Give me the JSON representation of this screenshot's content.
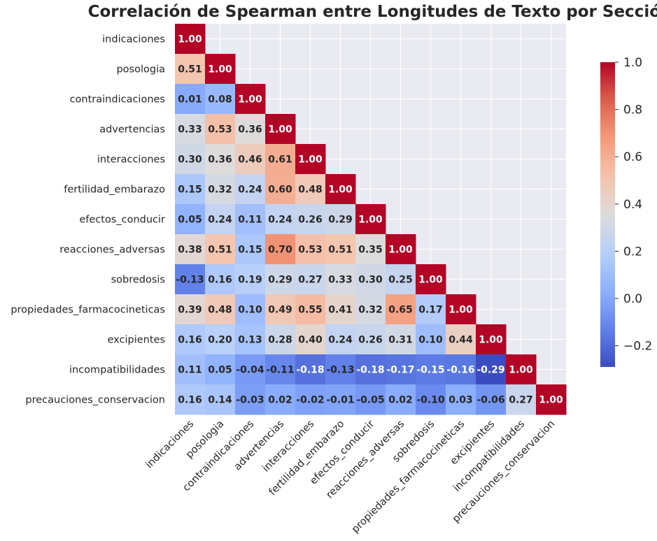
{
  "chart_data": {
    "type": "heatmap",
    "title": "Correlación de Spearman entre Longitudes de Texto por Sección",
    "labels": [
      "indicaciones",
      "posologia",
      "contraindicaciones",
      "advertencias",
      "interacciones",
      "fertilidad_embarazo",
      "efectos_conducir",
      "reacciones_adversas",
      "sobredosis",
      "propiedades_farmacocineticas",
      "excipientes",
      "incompatibilidades",
      "precauciones_conservacion"
    ],
    "matrix": [
      [
        1.0
      ],
      [
        0.51,
        1.0
      ],
      [
        0.01,
        0.08,
        1.0
      ],
      [
        0.33,
        0.53,
        0.36,
        1.0
      ],
      [
        0.3,
        0.36,
        0.46,
        0.61,
        1.0
      ],
      [
        0.15,
        0.32,
        0.24,
        0.6,
        0.48,
        1.0
      ],
      [
        0.05,
        0.24,
        0.11,
        0.24,
        0.26,
        0.29,
        1.0
      ],
      [
        0.38,
        0.51,
        0.15,
        0.7,
        0.53,
        0.51,
        0.35,
        1.0
      ],
      [
        -0.13,
        0.16,
        0.19,
        0.29,
        0.27,
        0.33,
        0.3,
        0.25,
        1.0
      ],
      [
        0.39,
        0.48,
        0.1,
        0.49,
        0.55,
        0.41,
        0.32,
        0.65,
        0.17,
        1.0
      ],
      [
        0.16,
        0.2,
        0.13,
        0.28,
        0.4,
        0.24,
        0.26,
        0.31,
        0.1,
        0.44,
        1.0
      ],
      [
        0.11,
        0.05,
        -0.04,
        -0.11,
        -0.18,
        -0.13,
        -0.18,
        -0.17,
        -0.15,
        -0.16,
        -0.29,
        1.0
      ],
      [
        0.16,
        0.14,
        -0.03,
        0.02,
        -0.02,
        -0.01,
        -0.05,
        0.02,
        -0.1,
        0.03,
        -0.06,
        0.27,
        1.0
      ]
    ],
    "mask": "upper-triangle",
    "colormap": "coolwarm",
    "vmin": -0.29,
    "vmax": 1.0,
    "colorbar_ticks": [
      "1.0",
      "0.8",
      "0.6",
      "0.4",
      "0.2",
      "0.0",
      "−0.2"
    ],
    "colorbar_tick_values": [
      1.0,
      0.8,
      0.6,
      0.4,
      0.2,
      0.0,
      -0.2
    ],
    "grid": true,
    "background": "#eaeaf2"
  }
}
